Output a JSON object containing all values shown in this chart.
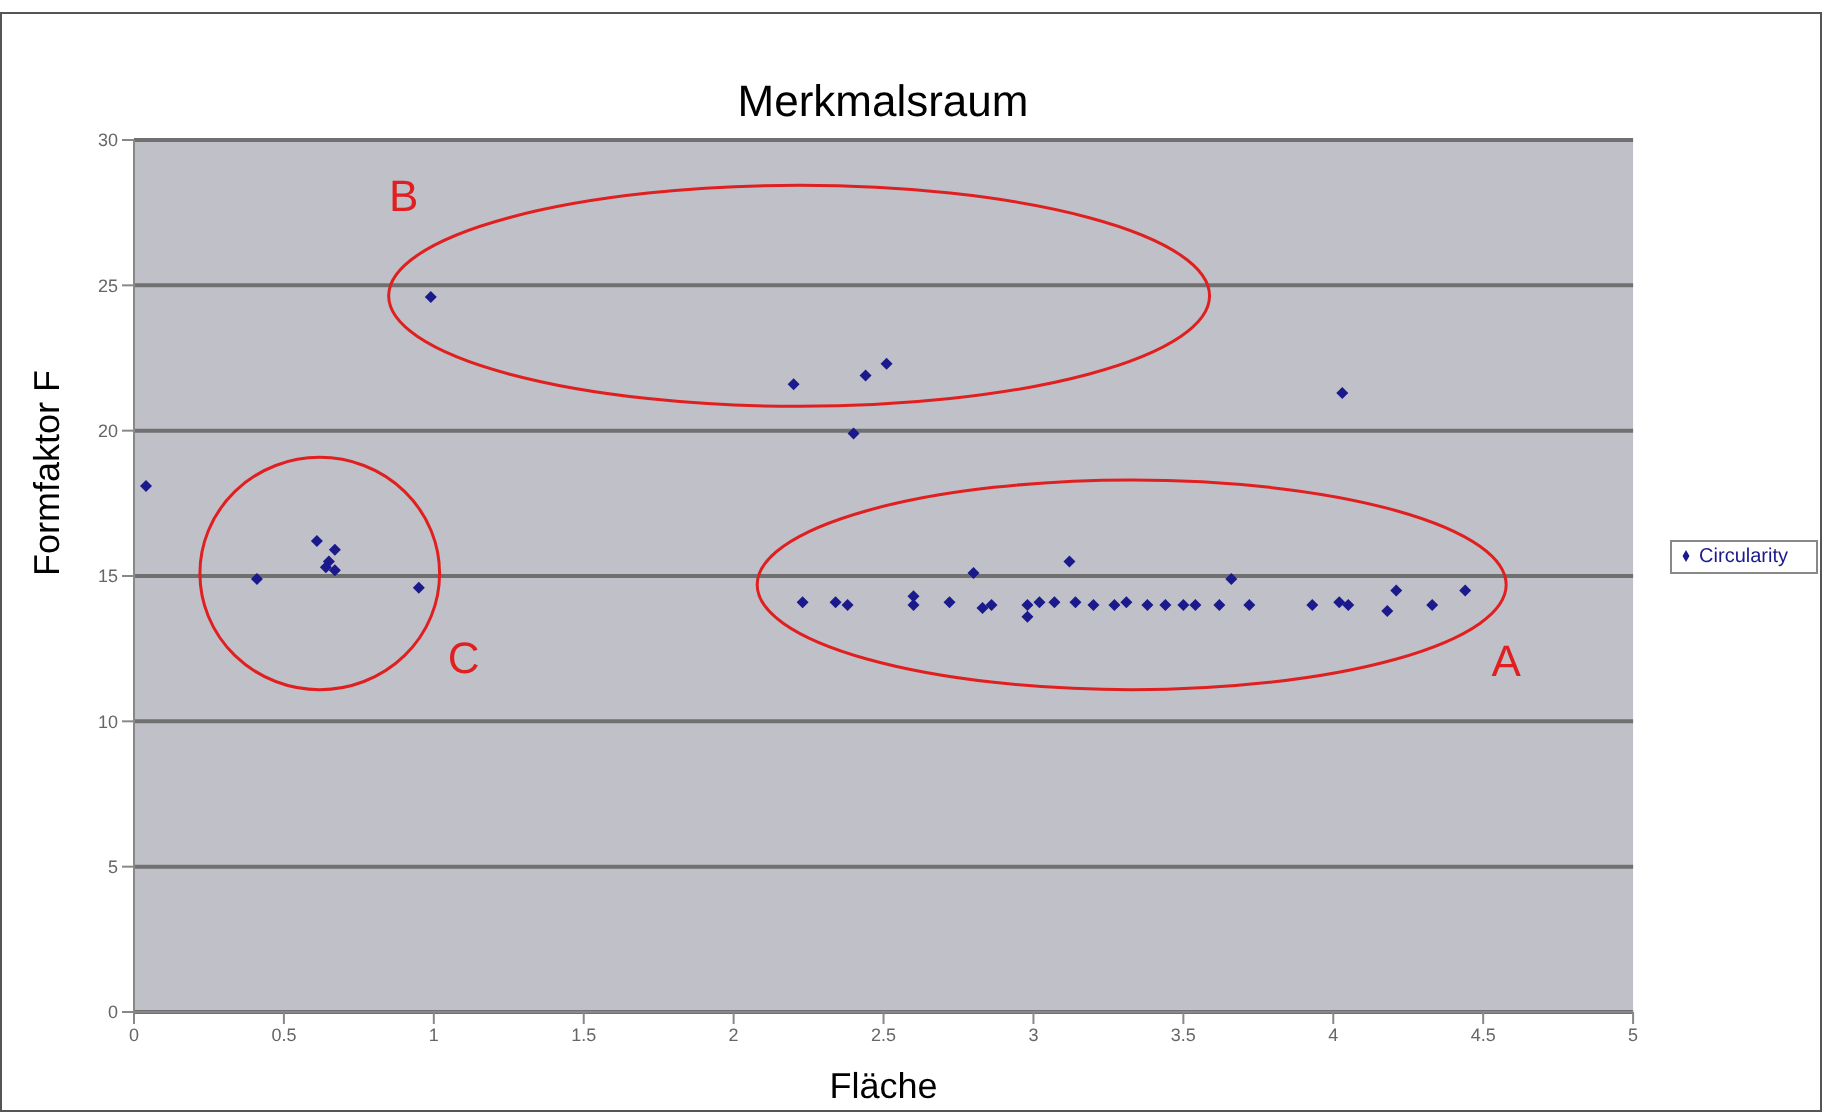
{
  "chart_data": {
    "type": "scatter",
    "title": "Merkmalsraum",
    "xlabel": "Fläche",
    "ylabel": "Formfaktor F",
    "annotations": [
      "A",
      "B",
      "C"
    ],
    "series": [
      {
        "name": "Circularity",
        "color": "#1a1a8c",
        "x": [
          0.04,
          0.41,
          0.61,
          0.65,
          0.67,
          0.64,
          0.67,
          0.95,
          0.99,
          2.2,
          2.44,
          2.51,
          2.4,
          4.03,
          2.23,
          2.34,
          2.38,
          2.6,
          2.6,
          2.72,
          2.8,
          2.83,
          2.86,
          2.98,
          2.98,
          3.02,
          3.07,
          3.12,
          3.14,
          3.2,
          3.27,
          3.31,
          3.38,
          3.44,
          3.5,
          3.54,
          3.62,
          3.66,
          3.72,
          3.93,
          4.02,
          4.05,
          4.18,
          4.21,
          4.33,
          4.44
        ],
        "values": [
          18.1,
          14.9,
          16.2,
          15.5,
          15.9,
          15.3,
          15.2,
          14.6,
          24.6,
          21.6,
          21.9,
          22.3,
          19.9,
          21.3,
          14.1,
          14.1,
          14.0,
          14.3,
          14.0,
          14.1,
          15.1,
          13.9,
          14.0,
          14.0,
          13.6,
          14.1,
          14.1,
          15.5,
          14.1,
          14.0,
          14.0,
          14.1,
          14.0,
          14.0,
          14.0,
          14.0,
          14.0,
          14.9,
          14.0,
          14.0,
          14.1,
          14.0,
          13.8,
          14.5,
          14.0,
          14.5
        ]
      }
    ],
    "xlim": [
      0,
      5
    ],
    "xticks": [
      0,
      0.5,
      1,
      1.5,
      2,
      2.5,
      3,
      3.5,
      4,
      4.5,
      5
    ],
    "ylim": [
      0,
      30
    ],
    "yticks": [
      0,
      5,
      10,
      15,
      20,
      25,
      30
    ],
    "grid": "y",
    "legend": "right",
    "marker": "diamond"
  }
}
